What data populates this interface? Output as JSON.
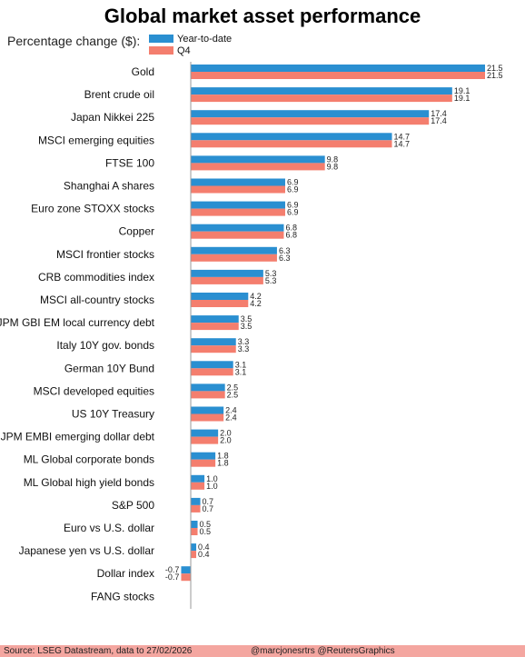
{
  "chart_data": {
    "type": "bar",
    "orientation": "horizontal",
    "title": "Global market asset performance",
    "subtitle": "Percentage change ($):",
    "categories": [
      "Gold",
      "Brent crude oil",
      "Japan Nikkei 225",
      "MSCI emerging equities",
      "FTSE 100",
      "Shanghai A shares",
      "Euro zone STOXX stocks",
      "Copper",
      "MSCI frontier stocks",
      "CRB commodities index",
      "MSCI all-country stocks",
      "JPM GBI EM local currency debt",
      "Italy 10Y gov. bonds",
      "German 10Y Bund",
      "MSCI developed equities",
      "US 10Y Treasury",
      "JPM EMBI emerging dollar debt",
      "ML Global corporate bonds",
      "ML Global high yield bonds",
      "S&P 500",
      "Euro vs U.S. dollar",
      "Japanese yen vs U.S. dollar",
      "Dollar index",
      "FANG stocks"
    ],
    "series": [
      {
        "name": "Year-to-date",
        "color": "#2a8fd1",
        "values": [
          21.5,
          19.1,
          17.4,
          14.7,
          9.8,
          6.9,
          6.9,
          6.8,
          6.3,
          5.3,
          4.2,
          3.5,
          3.3,
          3.1,
          2.5,
          2.4,
          2.0,
          1.8,
          1.0,
          0.7,
          0.5,
          0.4,
          -0.7,
          null
        ],
        "labels": [
          "21.5",
          "19.1",
          "17.4",
          "14.7",
          "9.8",
          "6.9",
          "6.9",
          "6.8",
          "6.3",
          "5.3",
          "4.2",
          "3.5",
          "3.3",
          "3.1",
          "2.5",
          "2.4",
          "2.0",
          "1.8",
          "1.0",
          "0.7",
          "0.5",
          "0.4",
          "-0.7",
          ""
        ]
      },
      {
        "name": "Q4",
        "color": "#f47e6e",
        "values": [
          21.5,
          19.1,
          17.4,
          14.7,
          9.8,
          6.9,
          6.9,
          6.8,
          6.3,
          5.3,
          4.2,
          3.5,
          3.3,
          3.1,
          2.5,
          2.4,
          2.0,
          1.8,
          1.0,
          0.7,
          0.5,
          0.4,
          -0.7,
          null
        ],
        "labels": [
          "21.5",
          "19.1",
          "17.4",
          "14.7",
          "9.8",
          "6.9",
          "6.9",
          "6.8",
          "6.3",
          "5.3",
          "4.2",
          "3.5",
          "3.3",
          "3.1",
          "2.5",
          "2.4",
          "2.0",
          "1.8",
          "1.0",
          "0.7",
          "0.5",
          "0.4",
          "-0.7",
          ""
        ]
      }
    ],
    "xlim": [
      -0.7,
      21.5
    ],
    "grid": false,
    "legend_placement": "top-left"
  },
  "footer": {
    "source": "Source: LSEG Datastream, data to 27/02/2026",
    "credit": "@marcjonesrtrs @ReutersGraphics"
  }
}
